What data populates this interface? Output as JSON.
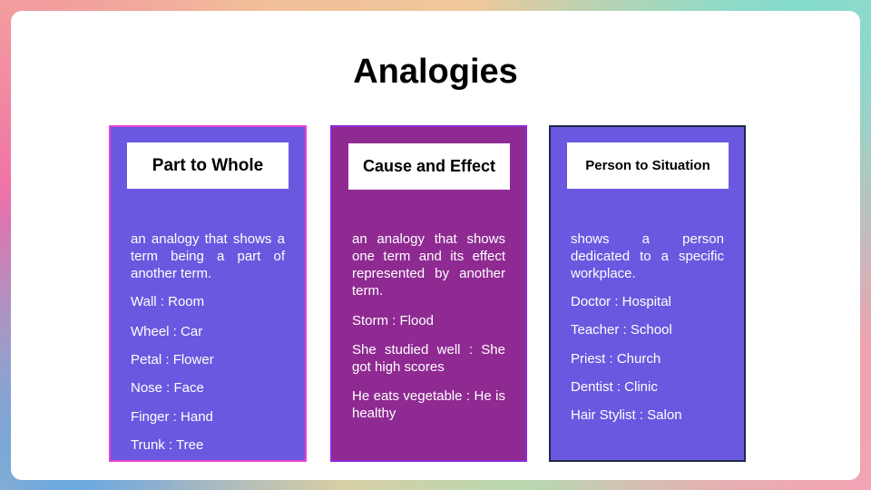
{
  "slide": {
    "title": "Analogies",
    "cards": [
      {
        "heading": "Part to Whole",
        "description": "an analogy that shows a term being a part of another term.",
        "examples": [
          "Wall : Room",
          "Wheel : Car",
          "Petal : Flower",
          "Nose : Face",
          "Finger : Hand",
          "Trunk : Tree"
        ]
      },
      {
        "heading": "Cause and Effect",
        "description": "an analogy that shows one term and its effect represented by another term.",
        "examples": [
          "Storm : Flood",
          "She studied well : She got high scores",
          "He eats vegetable : He is healthy"
        ]
      },
      {
        "heading": "Person to Situation",
        "description": "shows a person dedicated to a specific workplace.",
        "examples": [
          "Doctor : Hospital",
          "Teacher : School",
          "Priest : Church",
          "Dentist : Clinic",
          "Hair Stylist : Salon"
        ]
      }
    ]
  },
  "colors": {
    "card_purple": "#6b58e0",
    "card_magenta": "#8e2a92",
    "border_pink": "#ef3fd0",
    "border_violet": "#8f2ad8",
    "border_navy": "#1c2a44"
  }
}
